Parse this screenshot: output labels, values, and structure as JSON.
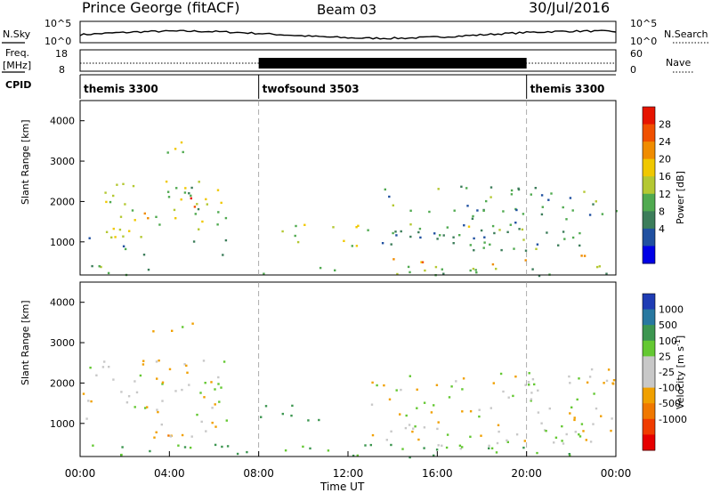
{
  "header": {
    "station": "Prince George (fitACF)",
    "beam": "Beam 03",
    "date": "30/Jul/2016"
  },
  "top_panel": {
    "left_label": "N.Sky",
    "right_label": "N.Search",
    "left_ticks": [
      "10^5",
      "10^0"
    ],
    "right_ticks": [
      "10^5",
      "10^0"
    ]
  },
  "freq_panel": {
    "left_label_1": "Freq.",
    "left_label_2": "[MHz]",
    "right_label": "Nave",
    "left_ticks": [
      "18",
      "8"
    ],
    "right_ticks": [
      "60",
      "0"
    ]
  },
  "cpid": {
    "label": "CPID",
    "segments": [
      {
        "name": "themis 3300",
        "start_h": 0,
        "end_h": 8
      },
      {
        "name": "twofsound 3503",
        "start_h": 8,
        "end_h": 20
      },
      {
        "name": "themis 3300",
        "start_h": 20,
        "end_h": 24
      }
    ]
  },
  "power_panel": {
    "ylabel": "Slant Range [km]",
    "yticks": [
      "4000",
      "3000",
      "2000",
      "1000"
    ],
    "colorbar_label": "Power [dB]",
    "colorbar_ticks": [
      "28",
      "24",
      "20",
      "16",
      "12",
      "8",
      "4"
    ],
    "colors": [
      "#0000e6",
      "#2050a0",
      "#3c7d5a",
      "#50aa50",
      "#b4c832",
      "#f0c800",
      "#f08c00",
      "#f05000",
      "#e61400"
    ]
  },
  "velocity_panel": {
    "ylabel": "Slant Range [km]",
    "yticks": [
      "4000",
      "3000",
      "2000",
      "1000"
    ],
    "colorbar_label": "Velocity [m s",
    "colorbar_sup": "-1",
    "colorbar_close": "]",
    "colorbar_ticks": [
      "1000",
      "500",
      "100",
      "25",
      "-25",
      "-100",
      "-500",
      "-1000"
    ],
    "colors": [
      "#1e3cb4",
      "#2878a0",
      "#3c9650",
      "#64c832",
      "#c8c8c8",
      "#c8c8c8",
      "#f0a000",
      "#f07800",
      "#f03c00",
      "#e60000"
    ]
  },
  "xaxis": {
    "label": "Time UT",
    "ticks": [
      "00:00",
      "04:00",
      "08:00",
      "12:00",
      "16:00",
      "20:00",
      "00:00"
    ]
  },
  "chart_data": {
    "type": "heatmap",
    "title": "Prince George (fitACF)  Beam 03  30/Jul/2016",
    "xlabel": "Time UT",
    "ylabel": "Slant Range [km]",
    "xlim_hours": [
      0,
      24
    ],
    "ylim_km": [
      180,
      4500
    ],
    "mode_changes_h": [
      8,
      20
    ],
    "power_regions": [
      {
        "t0": 1.0,
        "t1": 6.8,
        "r0": 700,
        "r1": 2600,
        "db": 14
      },
      {
        "t0": 0.0,
        "t1": 2.0,
        "r0": 900,
        "r1": 1200,
        "db": 10
      },
      {
        "t0": 2.5,
        "t1": 5.0,
        "r0": 1600,
        "r1": 2000,
        "db": 24
      },
      {
        "t0": 4.6,
        "t1": 5.3,
        "r0": 1700,
        "r1": 2200,
        "db": 26
      },
      {
        "t0": 2.8,
        "t1": 5.0,
        "r0": 3200,
        "r1": 3500,
        "db": 18
      },
      {
        "t0": 3.0,
        "t1": 4.2,
        "r0": 550,
        "r1": 700,
        "db": 22
      },
      {
        "t0": 8.0,
        "t1": 13.0,
        "r0": 900,
        "r1": 1500,
        "db": 16
      },
      {
        "t0": 13.5,
        "t1": 24.0,
        "r0": 800,
        "r1": 2400,
        "db": 10
      },
      {
        "t0": 14.0,
        "t1": 20.0,
        "r0": 1000,
        "r1": 1500,
        "db": 14
      },
      {
        "t0": 0.0,
        "t1": 24.0,
        "r0": 180,
        "r1": 450,
        "db": 12
      },
      {
        "t0": 14.0,
        "t1": 20.0,
        "r0": 450,
        "r1": 650,
        "db": 22
      },
      {
        "t0": 22.0,
        "t1": 24.0,
        "r0": 300,
        "r1": 700,
        "db": 26
      }
    ],
    "velocity_regions": [
      {
        "t0": 0.0,
        "t1": 6.8,
        "r0": 700,
        "r1": 2600,
        "v": 0
      },
      {
        "t0": 2.8,
        "t1": 5.0,
        "r0": 3200,
        "r1": 3500,
        "v": 0
      },
      {
        "t0": 3.0,
        "t1": 4.2,
        "r0": 600,
        "r1": 900,
        "v": -150
      },
      {
        "t0": 8.0,
        "t1": 11.0,
        "r0": 1100,
        "r1": 1500,
        "v": 150
      },
      {
        "t0": 13.0,
        "t1": 24.0,
        "r0": 400,
        "r1": 2400,
        "v": 0
      },
      {
        "t0": 0.0,
        "t1": 24.0,
        "r0": 180,
        "r1": 500,
        "v": 100
      }
    ]
  }
}
